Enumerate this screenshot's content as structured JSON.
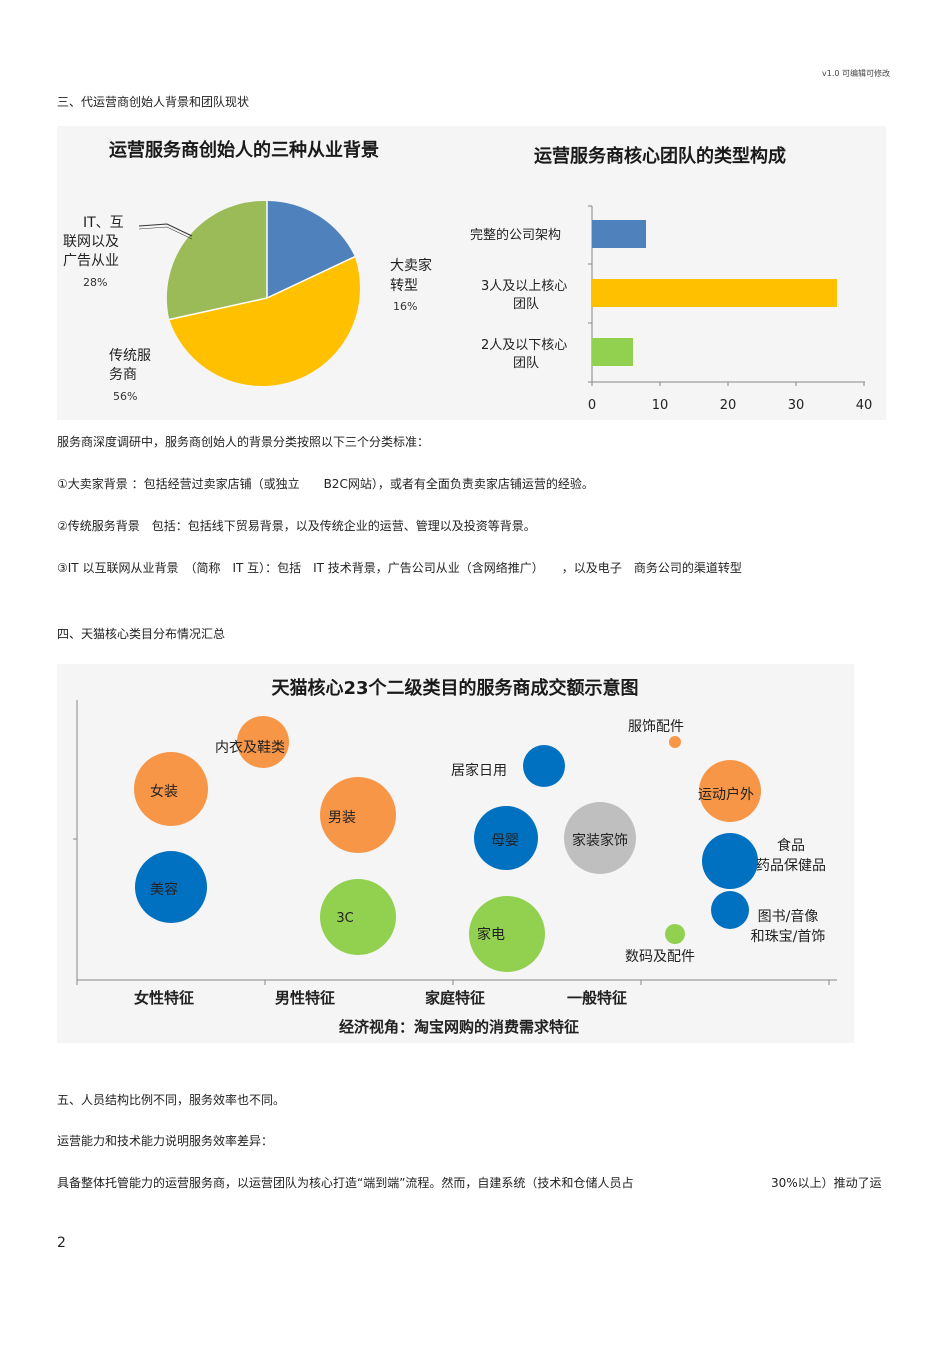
{
  "header": {
    "version": "v1.0 可编辑可修改"
  },
  "section3": {
    "title": "三、代运营商创始人背景和团队现状",
    "intro": "服务商深度调研中，服务商创始人的背景分类按照以下三个分类标准：",
    "item1": "①大卖家背景 ：包括经营过卖家店铺（或独立　　B2C网站），或者有全面负责卖家店铺运营的经验。",
    "item2": "②传统服务背景　包括：包括线下贸易背景，以及传统企业的运营、管理以及投资等背景。",
    "item3": "③IT 以互联网从业背景　（简称　IT 互）：包括　IT 技术背景，广告公司从业（含网络推广）　　，以及电子　商务公司的渠道转型"
  },
  "section4": {
    "title": "四、天猫核心类目分布情况汇总"
  },
  "section5": {
    "title": "五、人员结构比例不同，服务效率也不同。",
    "p1": "运营能力和技术能力说明服务效率差异：",
    "p2a": "具备整体托管能力的运营服务商，以运营团队为核心打造“端到端”流程。然而，自建系统（技术和仓储人员占",
    "p2b": "30%以上）推动了运"
  },
  "page_number": "2",
  "chart_data": [
    {
      "type": "pie",
      "title": "运营服务商创始人的三种从业背景",
      "slices": [
        {
          "name_lines": [
            "大卖家",
            "转型"
          ],
          "pct_label": "16%",
          "value": 16,
          "color": "#4f81bd"
        },
        {
          "name_lines": [
            "传统服",
            "务商"
          ],
          "pct_label": "56%",
          "value": 56,
          "color": "#ffc000"
        },
        {
          "name_lines": [
            "IT、互",
            "联网以及",
            "广告从业"
          ],
          "pct_label": "28%",
          "value": 28,
          "color": "#9bbb59"
        }
      ]
    },
    {
      "type": "bar",
      "orientation": "horizontal",
      "title": "运营服务商核心团队的类型构成",
      "categories": [
        {
          "lines": [
            "完整的公司架构"
          ],
          "value": 8,
          "color": "#4f81bd"
        },
        {
          "lines": [
            "3人及以上核心",
            "团队"
          ],
          "value": 36,
          "color": "#ffc000"
        },
        {
          "lines": [
            "2人及以下核心",
            "团队"
          ],
          "value": 6,
          "color": "#92d050"
        }
      ],
      "xlim": [
        0,
        40
      ],
      "xticks": [
        "0",
        "10",
        "20",
        "30",
        "40"
      ]
    },
    {
      "type": "bubble",
      "title": "天猫核心23个二级类目的服务商成交额示意图",
      "xlabel": "经济视角：淘宝网购的消费需求特征",
      "groups": [
        "女性特征",
        "男性特征",
        "家庭特征",
        "一般特征"
      ],
      "colors": {
        "orange": "#f79646",
        "blue": "#0070c0",
        "green": "#92d050",
        "gray": "#bfbfbf"
      },
      "bubbles": [
        {
          "label": [
            "女装"
          ],
          "group": "女性特征",
          "color": "orange",
          "size": 0.78
        },
        {
          "label": [
            "美容"
          ],
          "group": "女性特征",
          "color": "blue",
          "size": 0.76
        },
        {
          "label": [
            "内衣及鞋类"
          ],
          "group": "女性特征",
          "color": "orange",
          "size": 0.55
        },
        {
          "label": [
            "男装"
          ],
          "group": "男性特征",
          "color": "orange",
          "size": 0.8
        },
        {
          "label": [
            "3C"
          ],
          "group": "男性特征",
          "color": "green",
          "size": 0.8
        },
        {
          "label": [
            "居家日用"
          ],
          "group": "家庭特征",
          "color": "blue",
          "size": 0.45
        },
        {
          "label": [
            "母婴"
          ],
          "group": "家庭特征",
          "color": "blue",
          "size": 0.68
        },
        {
          "label": [
            "家装家饰"
          ],
          "group": "家庭特征",
          "color": "gray",
          "size": 0.75
        },
        {
          "label": [
            "家电"
          ],
          "group": "家庭特征",
          "color": "green",
          "size": 0.8
        },
        {
          "label": [
            "服饰配件"
          ],
          "group": "一般特征",
          "color": "orange",
          "size": 0.13
        },
        {
          "label": [
            "运动户外"
          ],
          "group": "一般特征",
          "color": "orange",
          "size": 0.65
        },
        {
          "label": [
            "食品",
            "药品保健品"
          ],
          "group": "一般特征",
          "color": "blue",
          "size": 0.58
        },
        {
          "label": [
            "图书/音像",
            "和珠宝/首饰"
          ],
          "group": "一般特征",
          "color": "blue",
          "size": 0.4
        },
        {
          "label": [
            "数码及配件"
          ],
          "group": "一般特征",
          "color": "green",
          "size": 0.2
        }
      ]
    }
  ]
}
